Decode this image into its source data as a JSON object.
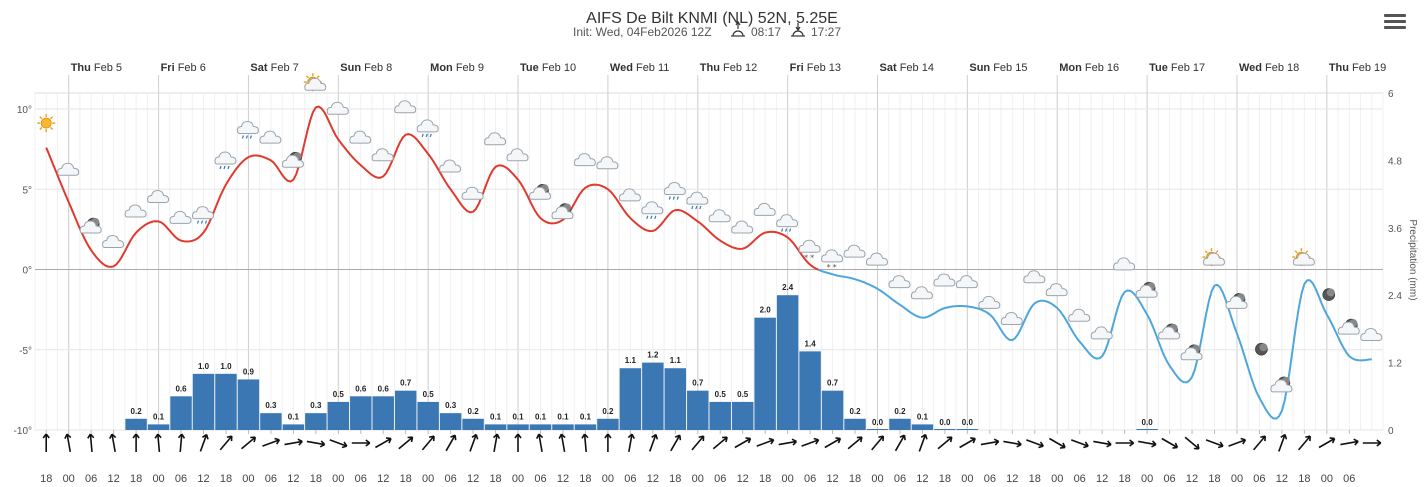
{
  "title": "AIFS De Bilt KNMI (NL) 52N, 5.25E",
  "subtitle_prefix": "Init: Wed, 04Feb2026 12Z",
  "sunrise": "08:17",
  "sunset": "17:27",
  "menu_icon": "hamburger-menu-icon",
  "colors": {
    "temp_warm": "#e03a2f",
    "temp_cold": "#4ea6dc",
    "precip": "#3b78b3",
    "grid": "#e3e3e3",
    "zero_line": "#aaaaaa"
  },
  "days": [
    {
      "dow": "Thu",
      "date": "Feb 5"
    },
    {
      "dow": "Fri",
      "date": "Feb 6"
    },
    {
      "dow": "Sat",
      "date": "Feb 7"
    },
    {
      "dow": "Sun",
      "date": "Feb 8"
    },
    {
      "dow": "Mon",
      "date": "Feb 9"
    },
    {
      "dow": "Tue",
      "date": "Feb 10"
    },
    {
      "dow": "Wed",
      "date": "Feb 11"
    },
    {
      "dow": "Thu",
      "date": "Feb 12"
    },
    {
      "dow": "Fri",
      "date": "Feb 13"
    },
    {
      "dow": "Sat",
      "date": "Feb 14"
    },
    {
      "dow": "Sun",
      "date": "Feb 15"
    },
    {
      "dow": "Mon",
      "date": "Feb 16"
    },
    {
      "dow": "Tue",
      "date": "Feb 17"
    },
    {
      "dow": "Wed",
      "date": "Feb 18"
    },
    {
      "dow": "Thu",
      "date": "Feb 19"
    }
  ],
  "chart_data": {
    "type": "line",
    "title": "AIFS De Bilt KNMI (NL) 52N, 5.25E",
    "x_start": "2026-02-04 18:00",
    "step_hours": 6,
    "hour_labels": [
      "18",
      "00",
      "06",
      "12",
      "18",
      "00",
      "06",
      "12",
      "18",
      "00",
      "06",
      "12",
      "18",
      "00",
      "06",
      "12",
      "18",
      "00",
      "06",
      "12",
      "18",
      "00",
      "06",
      "12",
      "18",
      "00",
      "06",
      "12",
      "18",
      "00",
      "06",
      "12",
      "18",
      "00",
      "06",
      "12",
      "18",
      "00",
      "06",
      "12",
      "18",
      "00",
      "06",
      "12",
      "18",
      "00",
      "06",
      "12",
      "18",
      "00",
      "06",
      "12",
      "18",
      "00",
      "06",
      "12",
      "18",
      "00",
      "06"
    ],
    "y_left": {
      "ticks": [
        "10°",
        "5°",
        "0°",
        "-5°",
        "-10°"
      ],
      "values": [
        10,
        5,
        0,
        -5,
        -10
      ],
      "range": [
        -10,
        11
      ]
    },
    "y_right": {
      "label": "Precipitation (mm)",
      "ticks": [
        "6",
        "4.8",
        "3.6",
        "2.4",
        "1.2",
        "0"
      ],
      "range": [
        0,
        6
      ]
    },
    "series": [
      {
        "name": "Temperature",
        "unit": "°C",
        "values": [
          7.6,
          4.2,
          1.2,
          0.2,
          2.3,
          3.0,
          1.8,
          2.3,
          5.3,
          7.0,
          6.8,
          5.6,
          10.1,
          8.1,
          6.5,
          5.8,
          8.4,
          7.2,
          5.0,
          3.6,
          6.4,
          5.6,
          3.2,
          3.1,
          5.1,
          5.0,
          3.2,
          2.4,
          3.7,
          3.0,
          1.8,
          1.3,
          2.3,
          2.0,
          0.3,
          -0.3,
          -0.6,
          -1.2,
          -2.2,
          -3.0,
          -2.4,
          -2.3,
          -2.8,
          -4.4,
          -2.1,
          -2.4,
          -4.5,
          -5.4,
          -1.4,
          -2.8,
          -6.0,
          -6.7,
          -1.0,
          -4.0,
          -8.0,
          -8.8,
          -0.9,
          -2.8,
          -5.4,
          -5.6
        ],
        "color_above_zero": "#e03a2f",
        "color_below_zero": "#4ea6dc"
      },
      {
        "name": "Precipitation",
        "unit": "mm",
        "type": "bar",
        "values": [
          0,
          0,
          0,
          0,
          0.2,
          0.1,
          0.6,
          1.0,
          1.0,
          0.9,
          0.3,
          0.1,
          0.3,
          0.5,
          0.6,
          0.6,
          0.7,
          0.5,
          0.3,
          0.2,
          0.1,
          0.1,
          0.1,
          0.1,
          0.1,
          0.2,
          1.1,
          1.2,
          1.1,
          0.7,
          0.5,
          0.5,
          2.0,
          2.4,
          1.4,
          0.7,
          0.2,
          0.0,
          0.2,
          0.1,
          0.0,
          0.0,
          0,
          0,
          0,
          0,
          0,
          0,
          0,
          0.0,
          0,
          0,
          0,
          0,
          0,
          0,
          0,
          0,
          0,
          0
        ],
        "labels": [
          "",
          "",
          "",
          "",
          "0.2",
          "0.1",
          "0.6",
          "1.0",
          "1.0",
          "0.9",
          "0.3",
          "0.1",
          "0.3",
          "0.5",
          "0.6",
          "0.6",
          "0.7",
          "0.5",
          "0.3",
          "0.2",
          "0.1",
          "0.1",
          "0.1",
          "0.1",
          "0.1",
          "0.2",
          "1.1",
          "1.2",
          "1.1",
          "0.7",
          "0.5",
          "0.5",
          "2.0",
          "2.4",
          "1.4",
          "0.7",
          "0.2",
          "0.0",
          "0.2",
          "0.1",
          "0.0",
          "0.0",
          "",
          "",
          "",
          "",
          "",
          "",
          "",
          "0.0",
          "",
          "",
          "",
          "",
          "",
          "",
          "",
          "",
          "",
          ""
        ]
      }
    ],
    "weather_icons": [
      {
        "i": 0,
        "icon": "sun-icon",
        "t": 9.0
      },
      {
        "i": 1,
        "icon": "cloud-icon",
        "t": 6.0
      },
      {
        "i": 2,
        "icon": "moon-cloud-icon",
        "t": 2.4
      },
      {
        "i": 3,
        "icon": "cloud-icon",
        "t": 1.5
      },
      {
        "i": 4,
        "icon": "cloud-icon",
        "t": 3.4
      },
      {
        "i": 5,
        "icon": "cloud-icon",
        "t": 4.3
      },
      {
        "i": 6,
        "icon": "cloud-icon",
        "t": 3.0
      },
      {
        "i": 7,
        "icon": "rain-cloud-icon",
        "t": 3.3
      },
      {
        "i": 8,
        "icon": "rain-cloud-icon",
        "t": 6.7
      },
      {
        "i": 9,
        "icon": "rain-cloud-icon",
        "t": 8.6
      },
      {
        "i": 10,
        "icon": "cloud-icon",
        "t": 8.0
      },
      {
        "i": 11,
        "icon": "moon-cloud-icon",
        "t": 6.5
      },
      {
        "i": 12,
        "icon": "sun-cloud-icon",
        "t": 11.3
      },
      {
        "i": 13,
        "icon": "cloud-icon",
        "t": 9.8
      },
      {
        "i": 14,
        "icon": "cloud-icon",
        "t": 8.0
      },
      {
        "i": 15,
        "icon": "cloud-icon",
        "t": 6.9
      },
      {
        "i": 16,
        "icon": "cloud-icon",
        "t": 9.9
      },
      {
        "i": 17,
        "icon": "rain-cloud-icon",
        "t": 8.7
      },
      {
        "i": 18,
        "icon": "cloud-icon",
        "t": 6.2
      },
      {
        "i": 19,
        "icon": "cloud-icon",
        "t": 4.5
      },
      {
        "i": 20,
        "icon": "cloud-icon",
        "t": 7.9
      },
      {
        "i": 21,
        "icon": "cloud-icon",
        "t": 6.9
      },
      {
        "i": 22,
        "icon": "moon-cloud-icon",
        "t": 4.5
      },
      {
        "i": 23,
        "icon": "moon-cloud-icon",
        "t": 3.3
      },
      {
        "i": 24,
        "icon": "cloud-icon",
        "t": 6.6
      },
      {
        "i": 25,
        "icon": "cloud-icon",
        "t": 6.4
      },
      {
        "i": 26,
        "icon": "cloud-icon",
        "t": 4.4
      },
      {
        "i": 27,
        "icon": "rain-cloud-icon",
        "t": 3.6
      },
      {
        "i": 28,
        "icon": "rain-cloud-icon",
        "t": 4.8
      },
      {
        "i": 29,
        "icon": "rain-cloud-icon",
        "t": 4.2
      },
      {
        "i": 30,
        "icon": "cloud-icon",
        "t": 3.1
      },
      {
        "i": 31,
        "icon": "cloud-icon",
        "t": 2.4
      },
      {
        "i": 32,
        "icon": "cloud-icon",
        "t": 3.5
      },
      {
        "i": 33,
        "icon": "rain-cloud-icon",
        "t": 2.8
      },
      {
        "i": 34,
        "icon": "snow-cloud-icon",
        "t": 1.2
      },
      {
        "i": 35,
        "icon": "snow-cloud-icon",
        "t": 0.6
      },
      {
        "i": 36,
        "icon": "cloud-icon",
        "t": 0.9
      },
      {
        "i": 37,
        "icon": "cloud-icon",
        "t": 0.4
      },
      {
        "i": 38,
        "icon": "cloud-icon",
        "t": -1.0
      },
      {
        "i": 39,
        "icon": "cloud-icon",
        "t": -1.7
      },
      {
        "i": 40,
        "icon": "cloud-icon",
        "t": -0.9
      },
      {
        "i": 41,
        "icon": "cloud-icon",
        "t": -1.0
      },
      {
        "i": 42,
        "icon": "cloud-icon",
        "t": -2.3
      },
      {
        "i": 43,
        "icon": "cloud-icon",
        "t": -3.3
      },
      {
        "i": 44,
        "icon": "cloud-icon",
        "t": -0.7
      },
      {
        "i": 45,
        "icon": "cloud-icon",
        "t": -1.5
      },
      {
        "i": 46,
        "icon": "cloud-icon",
        "t": -3.1
      },
      {
        "i": 47,
        "icon": "cloud-icon",
        "t": -4.2
      },
      {
        "i": 48,
        "icon": "cloud-icon",
        "t": 0.1
      },
      {
        "i": 49,
        "icon": "moon-cloud-icon",
        "t": -1.6
      },
      {
        "i": 50,
        "icon": "moon-cloud-icon",
        "t": -4.2
      },
      {
        "i": 51,
        "icon": "moon-cloud-icon",
        "t": -5.5
      },
      {
        "i": 52,
        "icon": "sun-cloud-icon",
        "t": 0.4
      },
      {
        "i": 53,
        "icon": "moon-cloud-icon",
        "t": -2.3
      },
      {
        "i": 54,
        "icon": "moon-icon",
        "t": -5.4
      },
      {
        "i": 55,
        "icon": "moon-cloud-icon",
        "t": -7.5
      },
      {
        "i": 56,
        "icon": "sun-cloud-icon",
        "t": 0.4
      },
      {
        "i": 57,
        "icon": "moon-icon",
        "t": -2.0
      },
      {
        "i": 58,
        "icon": "moon-cloud-icon",
        "t": -3.9
      },
      {
        "i": 59,
        "icon": "cloud-icon",
        "t": -4.3
      }
    ],
    "wind_dir_deg": [
      90,
      80,
      85,
      80,
      90,
      85,
      95,
      110,
      130,
      140,
      160,
      170,
      190,
      200,
      180,
      150,
      140,
      130,
      120,
      110,
      100,
      90,
      80,
      80,
      85,
      90,
      100,
      110,
      120,
      130,
      140,
      150,
      160,
      170,
      160,
      150,
      140,
      130,
      120,
      110,
      140,
      150,
      170,
      190,
      200,
      210,
      200,
      190,
      180,
      190,
      210,
      220,
      200,
      160,
      130,
      110,
      130,
      150,
      170,
      180
    ]
  }
}
